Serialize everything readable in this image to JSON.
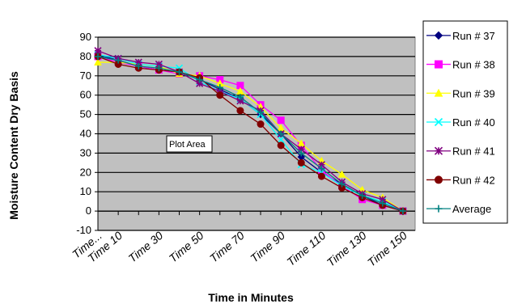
{
  "chart_data": {
    "type": "line",
    "ylabel": "Moisture Content Dry Basis",
    "xlabel": "Time in Minutes",
    "ylim": [
      -10,
      90
    ],
    "yticks": [
      -10,
      0,
      10,
      20,
      30,
      40,
      50,
      60,
      70,
      80,
      90
    ],
    "x_tick_labels": [
      "Time...",
      "Time 10",
      "Time 30",
      "Time 50",
      "Time 70",
      "Time 90",
      "Time 110",
      "Time 130",
      "Time 150"
    ],
    "x_tick_positions": [
      0,
      10,
      30,
      50,
      70,
      90,
      110,
      130,
      150
    ],
    "x": [
      0,
      10,
      20,
      30,
      40,
      50,
      60,
      70,
      80,
      90,
      100,
      110,
      120,
      130,
      140,
      150
    ],
    "grid": true,
    "legend_position": "right",
    "annotation": "Plot Area",
    "series": [
      {
        "name": "Run # 37",
        "color": "#000080",
        "marker": "diamond",
        "values": [
          81,
          78,
          75,
          73,
          72,
          68,
          63,
          58,
          50,
          40,
          28,
          20,
          14,
          8,
          3,
          0
        ]
      },
      {
        "name": "Run # 38",
        "color": "#ff00ff",
        "marker": "square",
        "values": [
          80,
          77,
          75,
          73,
          71,
          70,
          68,
          65,
          55,
          47,
          34,
          21,
          13,
          6,
          3,
          0
        ]
      },
      {
        "name": "Run # 39",
        "color": "#ffff00",
        "marker": "triangle",
        "values": [
          77,
          77,
          76,
          75,
          71,
          70,
          66,
          62,
          54,
          43,
          35,
          26,
          19,
          11,
          7,
          0
        ]
      },
      {
        "name": "Run # 40",
        "color": "#00ffff",
        "marker": "x",
        "values": [
          81,
          79,
          76,
          75,
          74,
          67,
          62,
          58,
          50,
          37,
          24,
          20,
          13,
          8,
          5,
          0
        ]
      },
      {
        "name": "Run # 41",
        "color": "#800080",
        "marker": "star",
        "values": [
          83,
          79,
          77,
          76,
          72,
          66,
          62,
          57,
          52,
          40,
          32,
          24,
          15,
          9,
          6,
          0
        ]
      },
      {
        "name": "Run # 42",
        "color": "#800000",
        "marker": "circle",
        "values": [
          80,
          76,
          74,
          73,
          72,
          69,
          60,
          52,
          45,
          34,
          25,
          18,
          12,
          7,
          3,
          0
        ]
      },
      {
        "name": "Average",
        "color": "#008080",
        "marker": "plus",
        "values": [
          80,
          78,
          75,
          74,
          72,
          68,
          64,
          59,
          51,
          40,
          30,
          22,
          14,
          8,
          4,
          0
        ]
      }
    ]
  }
}
